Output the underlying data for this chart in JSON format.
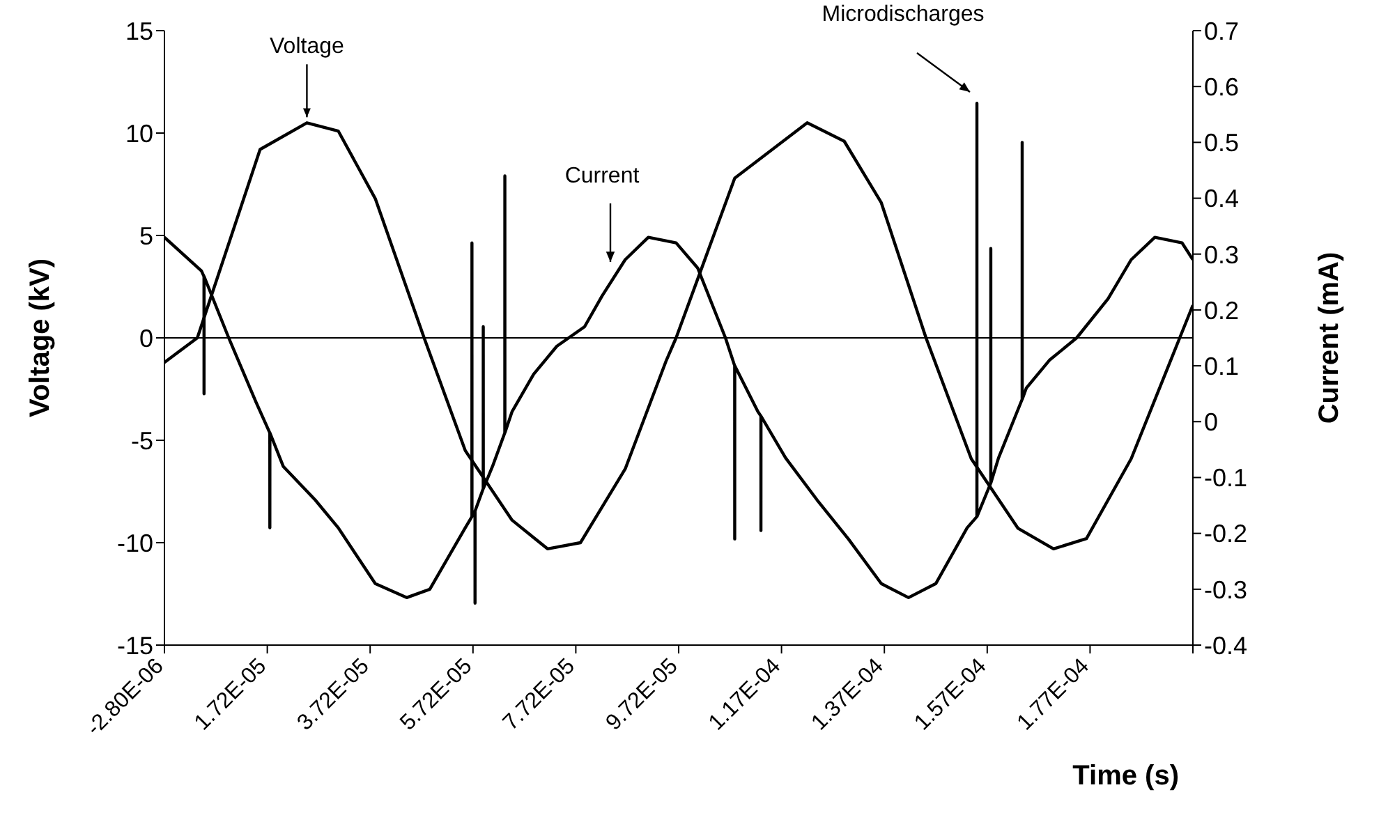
{
  "chart_data": {
    "type": "line",
    "xlabel": "Time (s)",
    "ylabel": "Voltage (kV)",
    "y2label": "Current (mA)",
    "xlim": [
      -2.8e-06,
      0.0001972
    ],
    "xticks": [
      {
        "value": -2.8e-06,
        "label": "-2.80E-06"
      },
      {
        "value": 1.72e-05,
        "label": "1.72E-05"
      },
      {
        "value": 3.72e-05,
        "label": "3.72E-05"
      },
      {
        "value": 5.72e-05,
        "label": "5.72E-05"
      },
      {
        "value": 7.72e-05,
        "label": "7.72E-05"
      },
      {
        "value": 9.72e-05,
        "label": "9.72E-05"
      },
      {
        "value": 0.0001172,
        "label": "1.17E-04"
      },
      {
        "value": 0.0001372,
        "label": "1.37E-04"
      },
      {
        "value": 0.0001572,
        "label": "1.57E-04"
      },
      {
        "value": 0.0001772,
        "label": "1.77E-04"
      },
      {
        "value": 0.0001972,
        "label": null
      }
    ],
    "ylim": [
      -15,
      15
    ],
    "yticks": [
      -15,
      -10,
      -5,
      0,
      5,
      10,
      15
    ],
    "y2lim": [
      -0.4,
      0.7
    ],
    "y2ticks": [
      -0.4,
      -0.3,
      -0.2,
      -0.1,
      0,
      0.1,
      0.2,
      0.3,
      0.4,
      0.5,
      0.6,
      0.7
    ],
    "marker": "none",
    "line_style": "solid",
    "ref_lines": [
      {
        "axis": "y",
        "value": 0,
        "color": "#000000"
      }
    ],
    "annotations": [
      {
        "text": "Voltage",
        "x": 2.49e-05,
        "y": 10.5
      },
      "Current",
      "Microdischarges"
    ],
    "series": [
      {
        "color": "#000000",
        "x": [
          -2.8e-06,
          3.6e-06,
          1.58e-05,
          2.49e-05,
          3.1e-05,
          3.82e-05,
          4.77e-05,
          5.57e-05,
          6.48e-05,
          7.17e-05,
          7.81e-05,
          8.68e-05,
          9.48e-05,
          9.67e-05,
          0.0001081,
          0.0001222,
          0.0001294,
          0.0001366,
          0.0001453,
          0.0001541,
          0.0001632,
          0.0001701,
          0.0001765,
          0.0001852,
          0.0001924,
          0.0001972
        ],
        "values": [
          -1.2,
          0,
          9.2,
          10.5,
          10.1,
          6.8,
          0,
          -5.5,
          -8.9,
          -10.3,
          -10,
          -6.4,
          -1.1,
          0,
          7.8,
          10.5,
          9.6,
          6.6,
          0,
          -5.9,
          -9.3,
          -10.3,
          -9.8,
          -5.9,
          -1.4,
          1.6
        ]
      },
      {
        "color": "#000000",
        "axis": "y2",
        "x": [
          -2.8e-06,
          4.4e-06,
          4.89e-06,
          4.9e-06,
          4.91e-06,
          9.7e-06,
          1.5e-05,
          1.769e-05,
          1.77e-05,
          1.771e-05,
          2.03e-05,
          2.65e-05,
          3.1e-05,
          3.82e-05,
          4.43e-05,
          4.88e-05,
          5.57e-05,
          5.699e-05,
          5.7e-05,
          5.701e-05,
          5.759e-05,
          5.76e-05,
          5.761e-05,
          5.919e-05,
          5.92e-05,
          5.921e-05,
          6.1e-05,
          6.339e-05,
          6.34e-05,
          6.341e-05,
          6.48e-05,
          6.9e-05,
          7.35e-05,
          7.89e-05,
          8.23e-05,
          8.68e-05,
          9.13e-05,
          9.67e-05,
          0.0001009,
          0.0001063,
          0.00010809,
          0.0001081,
          0.00010811,
          0.0001126,
          0.00011319,
          0.0001132,
          0.00011321,
          0.000118,
          0.0001241,
          0.0001302,
          0.0001366,
          0.0001419,
          0.0001472,
          0.0001533,
          0.00015519,
          0.0001552,
          0.00015521,
          0.00015789,
          0.0001579,
          0.00015791,
          0.0001594,
          0.00016399,
          0.000164,
          0.00016401,
          0.0001648,
          0.0001693,
          0.0001746,
          0.0001807,
          0.0001852,
          0.0001898,
          0.0001951,
          0.0001972
        ],
        "values": [
          0.33,
          0.27,
          0.26,
          0.05,
          0.26,
          0.15,
          0.035,
          -0.02,
          -0.19,
          -0.02,
          -0.08,
          -0.14,
          -0.19,
          -0.29,
          -0.315,
          -0.3,
          -0.19,
          -0.17,
          0.32,
          -0.17,
          -0.16,
          -0.325,
          -0.16,
          -0.12,
          0.17,
          -0.12,
          -0.08,
          -0.02,
          0.44,
          -0.02,
          0.018,
          0.085,
          0.135,
          0.17,
          0.225,
          0.29,
          0.33,
          0.32,
          0.275,
          0.15,
          0.1,
          -0.21,
          0.1,
          0.018,
          0.01,
          -0.195,
          0.01,
          -0.065,
          -0.14,
          -0.21,
          -0.29,
          -0.315,
          -0.29,
          -0.19,
          -0.17,
          0.57,
          -0.17,
          -0.11,
          0.31,
          -0.11,
          -0.065,
          0.04,
          0.5,
          0.04,
          0.06,
          0.11,
          0.15,
          0.22,
          0.29,
          0.33,
          0.32,
          0.29
        ]
      }
    ]
  }
}
